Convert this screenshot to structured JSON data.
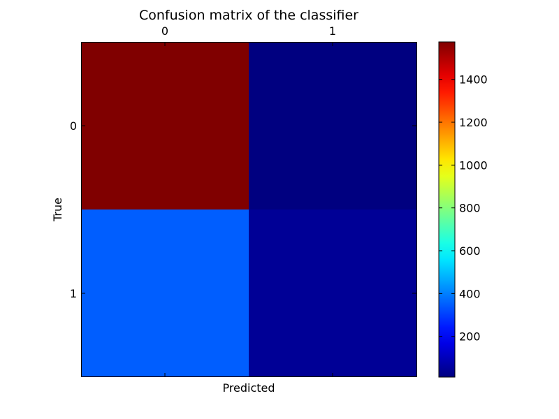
{
  "chart_data": {
    "type": "heatmap",
    "title": "Confusion matrix of the classifier",
    "xlabel": "Predicted",
    "ylabel": "True",
    "x_categories": [
      "0",
      "1"
    ],
    "y_categories": [
      "0",
      "1"
    ],
    "values": [
      [
        1575,
        10
      ],
      [
        350,
        45
      ]
    ],
    "colormap": "jet",
    "colorbar": {
      "min": 10,
      "max": 1575,
      "ticks": [
        200,
        400,
        600,
        800,
        1000,
        1200,
        1400
      ]
    }
  }
}
